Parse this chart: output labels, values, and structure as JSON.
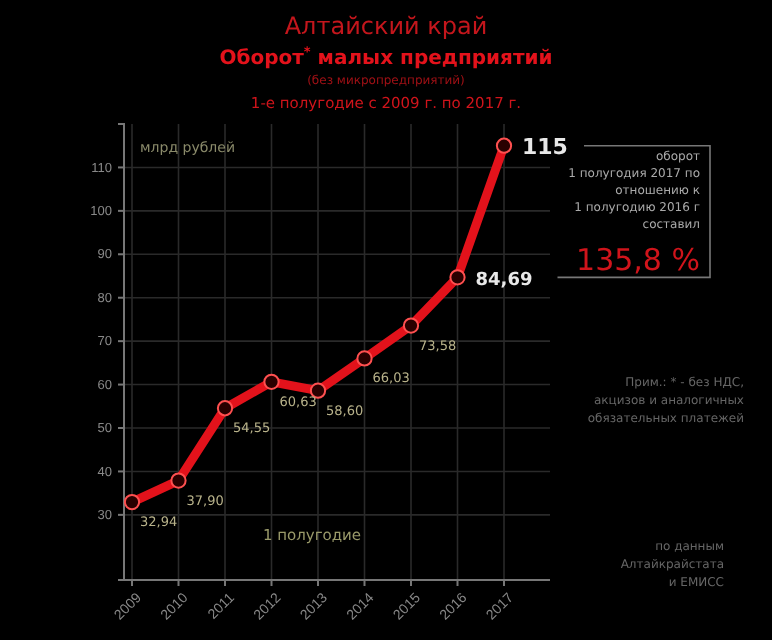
{
  "chart_data": {
    "type": "line",
    "title": "Алтайский край",
    "subtitle": "Оборот$^{*}$ малых предприятий",
    "ylabel": "млрд рублей",
    "categories": [
      "2009",
      "2010",
      "2011",
      "2012",
      "2013",
      "2014",
      "2015",
      "2016",
      "2017"
    ],
    "series": [
      {
        "color": "#e3121b",
        "values": [
          32.94,
          37.9,
          54.55,
          60.63,
          58.6,
          66.03,
          73.58,
          84.69,
          115
        ],
        "value_labels": [
          "32,94",
          "37,90",
          "54,55",
          "60,63",
          "58,60",
          "66,03",
          "73,58",
          "84,69",
          "115"
        ]
      }
    ],
    "ylim": [
      15,
      120
    ],
    "yticks": [
      30,
      40,
      50,
      60,
      70,
      80,
      90,
      100,
      110
    ],
    "grid": true,
    "marker": "circle",
    "line_style": "solid",
    "annotations": [
      "(без микропредприятий)",
      "1-е полугодие с 2009 г. по 2017 г.",
      "1 полугодие",
      "оборот\n1 полугодия 2017 по\nотношению к\n1 полугодию 2016 г\nсоставил",
      "135,8 %",
      "Прим.: * - без НДС,\nакцизов и аналогичных\nобязательных платежей",
      "по данным\nАлтайкрайстата\nи ЕМИСС"
    ]
  }
}
